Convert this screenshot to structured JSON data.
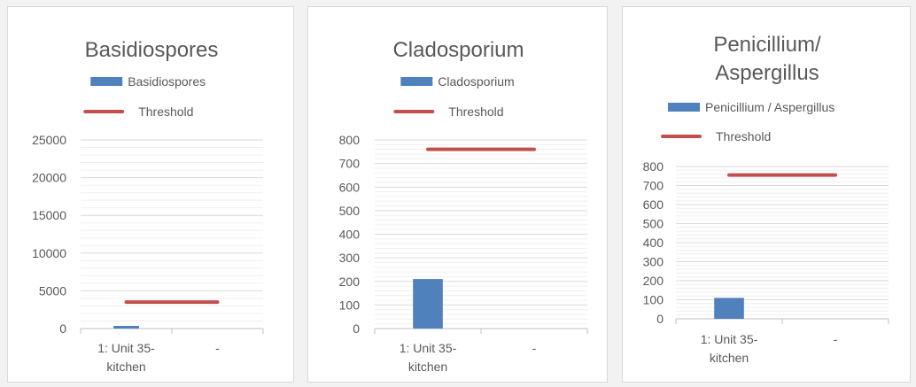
{
  "colors": {
    "bar": "#4F81BD",
    "threshold": "#C0504D",
    "major_grid": "#d9d9d9",
    "minor_grid": "#efefef",
    "axis": "#bfbfbf",
    "text": "#595959"
  },
  "chart_data": [
    {
      "type": "bar",
      "title": [
        "Basidiospores"
      ],
      "categories": [
        [
          "1: Unit 35-",
          "kitchen"
        ],
        [
          "-"
        ]
      ],
      "series": [
        {
          "name": "Basidiospores",
          "kind": "bar",
          "values": [
            350,
            null
          ]
        },
        {
          "name": "Threshold",
          "kind": "line",
          "value": 3500
        }
      ],
      "ylim": [
        0,
        25000
      ],
      "yticks": [
        0,
        5000,
        10000,
        15000,
        20000,
        25000
      ],
      "minor_step": 1000,
      "grid": true,
      "legend": "top"
    },
    {
      "type": "bar",
      "title": [
        "Cladosporium"
      ],
      "categories": [
        [
          "1: Unit 35-",
          "kitchen"
        ],
        [
          "-"
        ]
      ],
      "series": [
        {
          "name": "Cladosporium",
          "kind": "bar",
          "values": [
            210,
            null
          ]
        },
        {
          "name": "Threshold",
          "kind": "line",
          "value": 760
        }
      ],
      "ylim": [
        0,
        800
      ],
      "yticks": [
        0,
        100,
        200,
        300,
        400,
        500,
        600,
        700,
        800
      ],
      "minor_step": 20,
      "grid": true,
      "legend": "top"
    },
    {
      "type": "bar",
      "title": [
        "Penicillium/",
        "Aspergillus"
      ],
      "categories": [
        [
          "1: Unit 35-",
          "kitchen"
        ],
        [
          "-"
        ]
      ],
      "series": [
        {
          "name": "Penicillium / Aspergillus",
          "kind": "bar",
          "values": [
            110,
            null
          ]
        },
        {
          "name": "Threshold",
          "kind": "line",
          "value": 755
        }
      ],
      "ylim": [
        0,
        800
      ],
      "yticks": [
        0,
        100,
        200,
        300,
        400,
        500,
        600,
        700,
        800
      ],
      "minor_step": 20,
      "grid": true,
      "legend": "top"
    }
  ]
}
